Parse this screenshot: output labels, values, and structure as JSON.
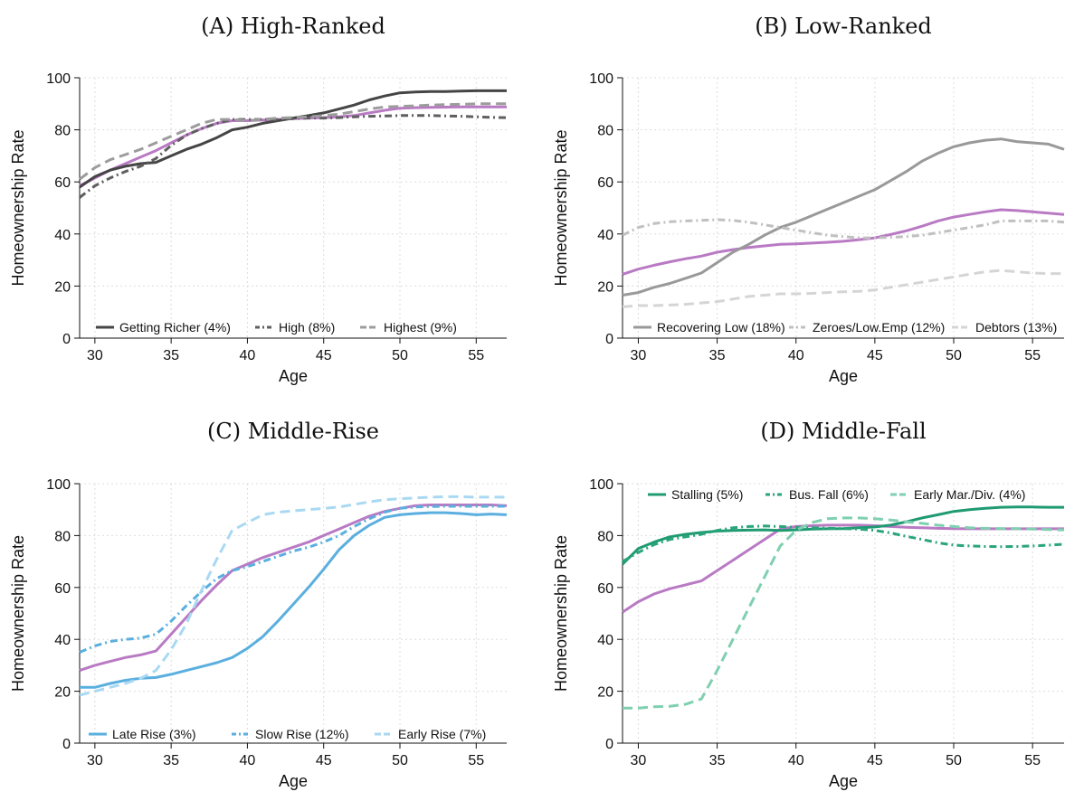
{
  "colors": {
    "purple": "#b97ac4"
  },
  "chart_data": [
    {
      "type": "line",
      "title": "(A) High-Ranked",
      "xlabel": "Age",
      "ylabel": "Homeownership Rate",
      "xlim": [
        29,
        57
      ],
      "ylim": [
        0,
        100
      ],
      "xticks": [
        30,
        35,
        40,
        45,
        50,
        55
      ],
      "yticks": [
        0,
        20,
        40,
        60,
        80,
        100
      ],
      "grid": true,
      "legend_position": "bottom",
      "x": [
        29,
        30,
        31,
        32,
        33,
        34,
        35,
        36,
        37,
        38,
        39,
        40,
        41,
        42,
        43,
        44,
        45,
        46,
        47,
        48,
        49,
        50,
        51,
        52,
        53,
        54,
        55,
        56,
        57
      ],
      "series": [
        {
          "name": "Getting Richer (4%)",
          "color": "#454545",
          "dash": "solid",
          "values": [
            58,
            62,
            64.5,
            66,
            67,
            67.5,
            70,
            72.5,
            74.5,
            77,
            80,
            81,
            82.5,
            83.5,
            84.5,
            85.5,
            86.5,
            88,
            89.5,
            91.5,
            93,
            94.2,
            94.5,
            94.7,
            94.7,
            94.9,
            95,
            95,
            95
          ]
        },
        {
          "name": "High (8%)",
          "color": "#5f5f5f",
          "dash": "dashdot",
          "values": [
            54,
            58.5,
            61.5,
            64,
            66,
            69,
            74,
            78,
            80.5,
            82.5,
            84,
            84,
            84,
            84,
            84.3,
            84.5,
            84.5,
            84.7,
            85,
            85.2,
            85.3,
            85.5,
            85.5,
            85.5,
            85.3,
            85.2,
            85,
            84.8,
            84.7
          ]
        },
        {
          "name": "Highest (9%)",
          "color": "#9c9c9c",
          "dash": "dashed",
          "values": [
            61,
            65.5,
            68.5,
            70.5,
            72.5,
            75,
            77.5,
            80,
            82.5,
            84,
            84,
            83.5,
            84,
            84.5,
            84.7,
            85,
            85.5,
            86,
            87,
            88,
            88.8,
            89,
            89.2,
            89.5,
            89.7,
            89.8,
            90,
            90,
            90
          ]
        },
        {
          "name": "",
          "color": "#b97ac4",
          "dash": "solid",
          "values": [
            58.5,
            61.5,
            64.5,
            67,
            69.5,
            72,
            75,
            78,
            80.5,
            82.5,
            83.5,
            83.5,
            83.8,
            84,
            84.3,
            84.5,
            84.7,
            85,
            85.5,
            86.5,
            87.5,
            88.3,
            88.5,
            88.6,
            88.7,
            88.8,
            88.8,
            88.8,
            88.8
          ]
        }
      ]
    },
    {
      "type": "line",
      "title": "(B) Low-Ranked",
      "xlabel": "Age",
      "ylabel": "Homeownership Rate",
      "xlim": [
        29,
        57
      ],
      "ylim": [
        0,
        100
      ],
      "xticks": [
        30,
        35,
        40,
        45,
        50,
        55
      ],
      "yticks": [
        0,
        20,
        40,
        60,
        80,
        100
      ],
      "grid": true,
      "legend_position": "bottom",
      "x": [
        29,
        30,
        31,
        32,
        33,
        34,
        35,
        36,
        37,
        38,
        39,
        40,
        41,
        42,
        43,
        44,
        45,
        46,
        47,
        48,
        49,
        50,
        51,
        52,
        53,
        54,
        55,
        56,
        57
      ],
      "series": [
        {
          "name": "Recovering Low (18%)",
          "color": "#999999",
          "dash": "solid",
          "values": [
            16.5,
            17.5,
            19.5,
            21,
            23,
            25,
            29,
            33,
            36,
            39.5,
            42.5,
            44.5,
            47,
            49.5,
            52,
            54.5,
            57,
            60.5,
            64,
            68,
            71,
            73.5,
            75,
            76,
            76.5,
            75.5,
            75,
            74.5,
            72.5
          ]
        },
        {
          "name": "Zeroes/Low.Emp (12%)",
          "color": "#c0c0c0",
          "dash": "dashdot",
          "values": [
            39.5,
            42.5,
            44,
            44.7,
            45,
            45.2,
            45.5,
            45.2,
            44.5,
            43.5,
            42.5,
            41.5,
            40.5,
            39.5,
            39,
            38.5,
            38.5,
            38.7,
            39,
            39.5,
            40.5,
            41.5,
            42.5,
            43.5,
            45,
            45,
            45,
            45,
            44.5
          ]
        },
        {
          "name": "Debtors (13%)",
          "color": "#d5d5d5",
          "dash": "dashed",
          "values": [
            12,
            12.5,
            12.5,
            12.7,
            13,
            13.5,
            14,
            15,
            16,
            16.5,
            17,
            17,
            17.2,
            17.5,
            17.8,
            18,
            18.5,
            19.5,
            20.5,
            21.5,
            22.5,
            23.5,
            24.5,
            25.5,
            26,
            25.5,
            25,
            24.8,
            24.8
          ]
        },
        {
          "name": "",
          "color": "#b97ac4",
          "dash": "solid",
          "values": [
            24.5,
            26.5,
            28,
            29.3,
            30.5,
            31.5,
            33,
            34,
            34.8,
            35.4,
            36,
            36.2,
            36.5,
            36.8,
            37.2,
            37.8,
            38.5,
            39.8,
            41.2,
            43,
            45,
            46.5,
            47.5,
            48.5,
            49.3,
            49,
            48.5,
            48,
            47.5
          ]
        }
      ]
    },
    {
      "type": "line",
      "title": "(C) Middle-Rise",
      "xlabel": "Age",
      "ylabel": "Homeownership Rate",
      "xlim": [
        29,
        57
      ],
      "ylim": [
        0,
        100
      ],
      "xticks": [
        30,
        35,
        40,
        45,
        50,
        55
      ],
      "yticks": [
        0,
        20,
        40,
        60,
        80,
        100
      ],
      "grid": true,
      "legend_position": "bottom",
      "x": [
        29,
        30,
        31,
        32,
        33,
        34,
        35,
        36,
        37,
        38,
        39,
        40,
        41,
        42,
        43,
        44,
        45,
        46,
        47,
        48,
        49,
        50,
        51,
        52,
        53,
        54,
        55,
        56,
        57
      ],
      "series": [
        {
          "name": "Late Rise (3%)",
          "color": "#5aafdf",
          "dash": "solid",
          "values": [
            21.5,
            21.5,
            23,
            24.2,
            25,
            25.3,
            26.5,
            28,
            29.5,
            31,
            33,
            36.5,
            41,
            47,
            53.5,
            60,
            67,
            74.5,
            80,
            84,
            87,
            88,
            88.5,
            88.8,
            88.8,
            88.5,
            88,
            88.3,
            88
          ]
        },
        {
          "name": "Slow Rise (12%)",
          "color": "#5aafdf",
          "dash": "dashdot",
          "values": [
            35,
            37.5,
            39.2,
            40,
            40.5,
            42,
            47,
            53,
            58.5,
            63.5,
            66.5,
            68,
            70,
            72,
            74,
            75.5,
            77.5,
            80,
            83.5,
            86.5,
            89,
            90.5,
            91,
            91.2,
            91.3,
            91.3,
            91.3,
            91.3,
            91.3
          ]
        },
        {
          "name": "Early Rise (7%)",
          "color": "#a9d9f2",
          "dash": "dashed",
          "values": [
            18.5,
            20,
            21.5,
            23,
            25,
            28,
            36,
            46,
            59,
            71,
            82,
            85,
            88,
            89,
            89.5,
            90,
            90.5,
            91,
            92,
            93,
            93.8,
            94.2,
            94.5,
            94.8,
            95,
            95,
            94.8,
            94.8,
            94.8
          ]
        },
        {
          "name": "",
          "color": "#b97ac4",
          "dash": "solid",
          "values": [
            28,
            30,
            31.5,
            33,
            34,
            35.5,
            42,
            48.5,
            55,
            61,
            66.5,
            69,
            71.5,
            73.5,
            75.5,
            77.5,
            80,
            82.5,
            85,
            87.5,
            89.3,
            90.5,
            91.5,
            91.8,
            91.8,
            91.8,
            91.8,
            91.8,
            91.5
          ]
        }
      ]
    },
    {
      "type": "line",
      "title": "(D) Middle-Fall",
      "xlabel": "Age",
      "ylabel": "Homeownership Rate",
      "xlim": [
        29,
        57
      ],
      "ylim": [
        0,
        100
      ],
      "xticks": [
        30,
        35,
        40,
        45,
        50,
        55
      ],
      "yticks": [
        0,
        20,
        40,
        60,
        80,
        100
      ],
      "grid": true,
      "legend_position": "top",
      "x": [
        29,
        30,
        31,
        32,
        33,
        34,
        35,
        36,
        37,
        38,
        39,
        40,
        41,
        42,
        43,
        44,
        45,
        46,
        47,
        48,
        49,
        50,
        51,
        52,
        53,
        54,
        55,
        56,
        57
      ],
      "series": [
        {
          "name": "Stalling (5%)",
          "color": "#1f9a72",
          "dash": "solid",
          "values": [
            69,
            75,
            77.5,
            79.5,
            80.5,
            81.2,
            81.7,
            82,
            82.1,
            82.2,
            82,
            82.2,
            82.5,
            82.6,
            82.7,
            83,
            83.3,
            84,
            85.3,
            86.8,
            88,
            89.3,
            90,
            90.5,
            90.9,
            91,
            91,
            90.9,
            90.9
          ]
        },
        {
          "name": "Bus. Fall (6%)",
          "color": "#2aa57a",
          "dash": "dashdot",
          "values": [
            70,
            73.5,
            76.5,
            78.5,
            79.5,
            80.5,
            82,
            83,
            83.5,
            83.7,
            83.5,
            83.2,
            83,
            82.8,
            82.7,
            82.5,
            82,
            81,
            79.7,
            78.5,
            77.2,
            76.3,
            76,
            75.8,
            75.7,
            75.8,
            76,
            76.3,
            76.7
          ]
        },
        {
          "name": "Early Mar./Div. (4%)",
          "color": "#7fcfb0",
          "dash": "dashed",
          "values": [
            13.5,
            13.5,
            14,
            14.2,
            15,
            17,
            28,
            40,
            52,
            64,
            76,
            82,
            85,
            86.5,
            86.8,
            86.8,
            86.5,
            86,
            85.3,
            84.7,
            84,
            83.5,
            83,
            82.8,
            82.7,
            82.7,
            82.5,
            82.3,
            82.2
          ]
        },
        {
          "name": "",
          "color": "#b97ac4",
          "dash": "solid",
          "values": [
            50.5,
            54.5,
            57.5,
            59.5,
            61,
            62.5,
            66.5,
            70.5,
            74.5,
            78.5,
            82.5,
            83.5,
            83.8,
            84,
            84,
            84,
            83.8,
            83.5,
            83.2,
            83,
            82.8,
            82.7,
            82.6,
            82.6,
            82.6,
            82.6,
            82.6,
            82.6,
            82.6
          ]
        }
      ]
    }
  ]
}
